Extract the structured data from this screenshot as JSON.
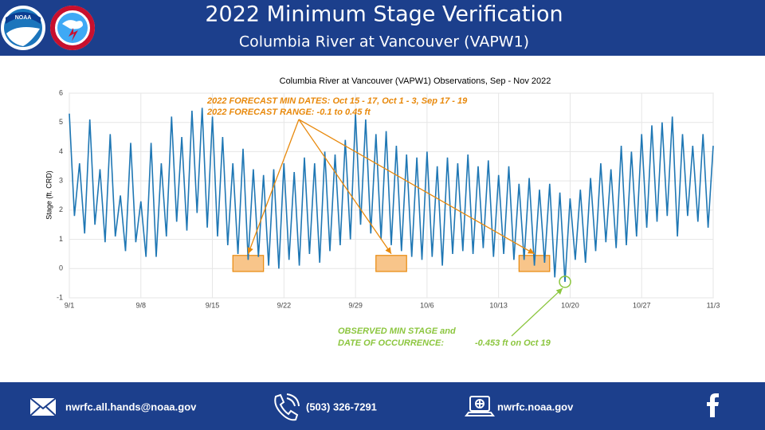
{
  "header": {
    "title": "2022 Minimum Stage Verification",
    "subtitle": "Columbia River at Vancouver (VAPW1)"
  },
  "chart_data": {
    "type": "line",
    "title": "Columbia River at Vancouver (VAPW1) Observations, Sep - Nov 2022",
    "ylabel": "Stage (ft. CRD)",
    "color": "#1f77b4",
    "x": [
      0,
      0.5,
      1,
      1.5,
      2,
      2.5,
      3,
      3.5,
      4,
      4.5,
      5,
      5.5,
      6,
      6.5,
      7,
      7.5,
      8,
      8.5,
      9,
      9.5,
      10,
      10.5,
      11,
      11.5,
      12,
      12.5,
      13,
      13.5,
      14,
      14.5,
      15,
      15.5,
      16,
      16.5,
      17,
      17.5,
      18,
      18.5,
      19,
      19.5,
      20,
      20.5,
      21,
      21.5,
      22,
      22.5,
      23,
      23.5,
      24,
      24.5,
      25,
      25.5,
      26,
      26.5,
      27,
      27.5,
      28,
      28.5,
      29,
      29.5,
      30,
      30.5,
      31,
      31.5,
      32,
      32.5,
      33,
      33.5,
      34,
      34.5,
      35,
      35.5,
      36,
      36.5,
      37,
      37.5,
      38,
      38.5,
      39,
      39.5,
      40,
      40.5,
      41,
      41.5,
      42,
      42.5,
      43,
      43.5,
      44,
      44.5,
      45,
      45.5,
      46,
      46.5,
      47,
      47.5,
      48,
      48.5,
      49,
      49.5,
      50,
      50.5,
      51,
      51.5,
      52,
      52.5,
      53,
      53.5,
      54,
      54.5,
      55,
      55.5,
      56,
      56.5,
      57,
      57.5,
      58,
      58.5,
      59,
      59.5,
      60,
      60.5,
      61,
      61.5,
      62,
      62.5,
      63
    ],
    "values": [
      5.3,
      1.8,
      3.6,
      1.2,
      5.1,
      1.5,
      3.4,
      0.9,
      4.6,
      1.1,
      2.5,
      0.6,
      4.3,
      0.9,
      2.3,
      0.4,
      4.3,
      0.4,
      3.6,
      1.1,
      5.2,
      1.6,
      4.5,
      1.3,
      5.4,
      1.9,
      5.5,
      1.4,
      5.2,
      1.1,
      4.5,
      0.8,
      3.6,
      0.5,
      4.1,
      0.3,
      3.4,
      0.4,
      3.2,
      0.1,
      3.4,
      0.0,
      3.6,
      0.3,
      3.3,
      0.1,
      3.8,
      0.5,
      3.6,
      0.2,
      4.0,
      0.6,
      3.9,
      0.8,
      4.4,
      1.0,
      5.3,
      1.5,
      5.1,
      1.2,
      4.6,
      1.0,
      4.7,
      0.8,
      4.2,
      0.6,
      3.9,
      0.4,
      3.8,
      0.3,
      4.0,
      0.4,
      3.5,
      0.1,
      3.8,
      0.5,
      3.6,
      0.6,
      3.9,
      0.5,
      3.5,
      0.7,
      3.7,
      0.4,
      3.2,
      0.5,
      3.5,
      0.3,
      2.9,
      0.3,
      3.1,
      0.1,
      2.7,
      0.2,
      2.9,
      -0.3,
      2.6,
      -0.453,
      2.4,
      0.3,
      2.7,
      0.2,
      3.1,
      0.6,
      3.6,
      0.9,
      3.4,
      0.7,
      4.2,
      0.8,
      4.0,
      1.1,
      4.6,
      1.4,
      4.9,
      1.6,
      5.0,
      1.8,
      5.2,
      1.1,
      4.6,
      1.8,
      4.2,
      1.6,
      4.6,
      1.4,
      4.2
    ],
    "xlim": [
      0,
      63
    ],
    "xticks": [
      {
        "value": 0,
        "label": "9/1"
      },
      {
        "value": 7,
        "label": "9/8"
      },
      {
        "value": 14,
        "label": "9/15"
      },
      {
        "value": 21,
        "label": "9/22"
      },
      {
        "value": 28,
        "label": "9/29"
      },
      {
        "value": 35,
        "label": "10/6"
      },
      {
        "value": 42,
        "label": "10/13"
      },
      {
        "value": 49,
        "label": "10/20"
      },
      {
        "value": 56,
        "label": "10/27"
      },
      {
        "value": 63,
        "label": "11/3"
      }
    ],
    "ylim": [
      -1,
      6
    ],
    "yticks": [
      -1,
      0,
      1,
      2,
      3,
      4,
      5,
      6
    ],
    "grid": true,
    "forecast_range": [
      -0.1,
      0.45
    ],
    "forecast_windows": [
      [
        16,
        18
      ],
      [
        30,
        32
      ],
      [
        44,
        46
      ]
    ],
    "observed_min": {
      "x": 48.5,
      "value": -0.453
    },
    "annotations": {
      "forecast_dates": "2022 FORECAST MIN DATES: Oct 15 - 17, Oct 1 - 3, Sep 17 - 19",
      "forecast_range": "2022 FORECAST RANGE: -0.1 to 0.45 ft",
      "observed_line1": "OBSERVED MIN STAGE and",
      "observed_line2": "DATE OF OCCURRENCE:",
      "observed_value": "-0.453 ft on Oct 19"
    }
  },
  "footer": {
    "email": "nwrfc.all.hands@noaa.gov",
    "phone": "(503) 326-7291",
    "web": "nwrfc.noaa.gov"
  }
}
